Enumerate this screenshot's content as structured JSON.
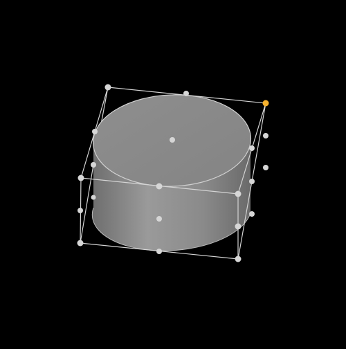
{
  "viewport": {
    "background": "#000000"
  },
  "object": {
    "shape": "cylinder",
    "surface_color": "#8a8a8a",
    "top_color": "#8c8c8c",
    "outline_color": "#d0d0d0"
  },
  "selection": {
    "bounding_box_color": "#d4d4d4",
    "handle_color": "#d6d6d6",
    "active_handle_color": "#f5b12e",
    "active_handle": "top-right-back-corner"
  }
}
